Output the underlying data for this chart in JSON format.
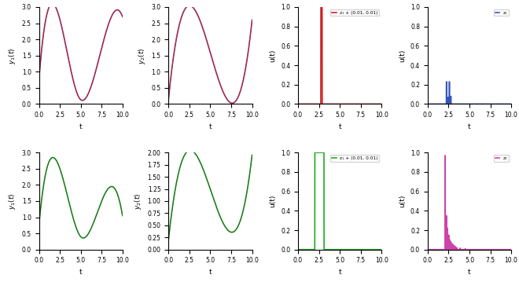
{
  "color_red": "#cc2222",
  "color_blue_purple": "#4444cc",
  "color_blue": "#3355bb",
  "color_green": "#22aa22",
  "color_pink": "#cc44aa",
  "color_darkgray": "#333333",
  "lw_main": 1.2,
  "lw_thin": 0.7,
  "fs": 6.5,
  "legend_top_u": "z₁ + (0.01, 0.01)",
  "legend_bot_u": "z₁ + (0.01, 0.01)",
  "legend_top_u2": "z₁",
  "legend_bot_u2": "z₂"
}
